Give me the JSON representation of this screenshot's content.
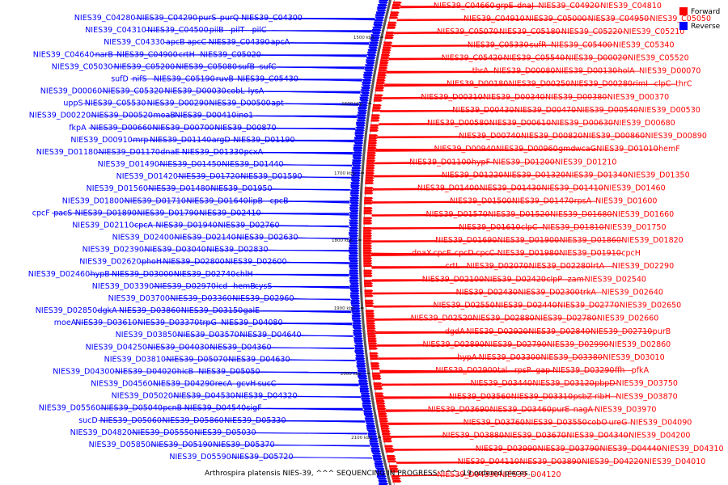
{
  "caption": "Arthrospira platensis NIES-39, ^^^ SEQUENCING IN PROGRESS ^^^, 19 ordered pieces...",
  "legend": [
    {
      "label": "Forward",
      "color": "#ff0000"
    },
    {
      "label": "Reverse",
      "color": "#0000ff"
    }
  ],
  "colors": {
    "forward": "#ff0000",
    "reverse": "#0000ff",
    "backbone": "#555555"
  },
  "ruler": [
    "1500 kbp",
    "1600 kbp",
    "1700 kbp",
    "1800 kbp",
    "1900 kbp",
    "2000 kbp",
    "2100 kbp"
  ],
  "reverse_labels": [
    "NIES39_C04280",
    "NIES39_C04290",
    "purS",
    "purQ",
    "NIES39_C04300",
    "NIES39_C04310",
    "NIES39_C04500",
    "pilB",
    "pilT",
    "pilC",
    "NIES39_C04330",
    "apcB",
    "apcC",
    "NIES39_C04390",
    "apcA",
    "NIES39_C04640",
    "narB",
    "NIES39_C04900",
    "crtH",
    "NIES39_C05020",
    "NIES39_C05030",
    "NIES39_C05200",
    "NIES39_C05080",
    "sufB",
    "sufC",
    "sufD",
    "nifS",
    "NIES39_C05190",
    "ruvB",
    "NIES39_C05430",
    "NIES39_D00060",
    "NIES39_C05320",
    "NIES39_D00030",
    "cobL",
    "lysA",
    "uppS",
    "NIES39_C05530",
    "NIES39_D00290",
    "NIES39_D00500",
    "apt",
    "NIES39_D00220",
    "NIES39_D00520",
    "moaB",
    "NIES39_D00410",
    "ino1",
    "fkpA",
    "NIES39_D00660",
    "NIES39_D00700",
    "NIES39_D00870",
    "NIES39_D00910",
    "mrp",
    "NIES39_D01140",
    "argD",
    "NIES39_D01190",
    "NIES39_D01180",
    "NIES39_D01170",
    "dnaE",
    "NIES39_D01330",
    "pcxA",
    "NIES39_D01490",
    "NIES39_D01450",
    "NIES39_D01440",
    "NIES39_D01420",
    "NIES39_D01720",
    "NIES39_D01590",
    "NIES39_D01560",
    "NIES39_D01480",
    "NIES39_D01950",
    "NIES39_D01800",
    "NIES39_D01710",
    "NIES39_D01640",
    "lipB",
    "cpcB",
    "cpcF",
    "pacS",
    "NIES39_D01890",
    "NIES39_D01790",
    "NIES39_D02410",
    "NIES39_D02110",
    "cpcA",
    "NIES39_D01940",
    "NIES39_D02760",
    "NIES39_D02400",
    "NIES39_D02140",
    "NIES39_D02630",
    "NIES39_D02390",
    "NIES39_D03040",
    "NIES39_D02830",
    "NIES39_D02620",
    "phoH",
    "NIES39_D02800",
    "NIES39_D02600",
    "NIES39_D02460",
    "hypB",
    "NIES39_D03000",
    "NIES39_D02740",
    "chlH",
    "NIES39_D03390",
    "NIES39_D02970",
    "icd",
    "hemB",
    "cysS",
    "NIES39_D03700",
    "NIES39_D03360",
    "NIES39_D02960",
    "NIES39_D02850",
    "dgkA",
    "NIES39_D03860",
    "NIES39_D03150",
    "galE",
    "moeA",
    "NIES39_D03610",
    "NIES39_D03370",
    "trpG",
    "NIES39_D04080",
    "NIES39_D03850",
    "NIES39_D03570",
    "NIES39_D04640",
    "NIES39_D04250",
    "NIES39_D04030",
    "NIES39_D04360",
    "NIES39_D03810",
    "NIES39_D05070",
    "NIES39_D04630",
    "NIES39_D04300",
    "NIES39_D04020",
    "hicB",
    "NIES39_D05050",
    "NIES39_D04560",
    "NIES39_D04290",
    "recA",
    "gcvH",
    "sucC",
    "NIES39_D05020",
    "NIES39_D04530",
    "NIES39_D04320",
    "NIES39_D05560",
    "NIES39_D05040",
    "pcnB",
    "NIES39_D04540",
    "sigF",
    "sucD",
    "NIES39_D05060",
    "NIES39_D05860",
    "NIES39_D05330",
    "NIES39_D04820",
    "NIES39_D05550",
    "NIES39_D05030",
    "NIES39_D05850",
    "NIES39_D05190",
    "NIES39_D05370",
    "NIES39_D05590",
    "NIES39_D05720"
  ],
  "forward_labels": [
    "NIES39_C04660",
    "grpE",
    "dnaJ",
    "NIES39_C04920",
    "NIES39_C04810",
    "NIES39_C04910",
    "NIES39_C05000",
    "NIES39_C04950",
    "NIES39_C05050",
    "NIES39_C05070",
    "NIES39_C05180",
    "NIES39_C05220",
    "NIES39_C05210",
    "NIES39_C05330",
    "sufR",
    "NIES39_C05400",
    "NIES39_C05340",
    "NIES39_C05420",
    "NIES39_C05540",
    "NIES39_D00020",
    "NIES39_C05520",
    "thrA",
    "NIES39_D00080",
    "NIES39_D00130",
    "holA",
    "NIES39_D00070",
    "NIES39_D00180",
    "NIES39_D00250",
    "NIES39_D00280",
    "rimI",
    "clpC",
    "thrC",
    "NIES39_D00310",
    "NIES39_D00340",
    "NIES39_D00380",
    "NIES39_D00370",
    "NIES39_D00430",
    "NIES39_D00470",
    "NIES39_D00540",
    "NIES39_D00530",
    "NIES39_D00580",
    "NIES39_D00610",
    "NIES39_D00630",
    "NIES39_D00680",
    "NIES39_D00740",
    "NIES39_D00820",
    "NIES39_D00860",
    "NIES39_D00890",
    "NIES39_D00940",
    "NIES39_D00960",
    "gmd",
    "wcaG",
    "NIES39_D01010",
    "hemF",
    "NIES39_D01100",
    "hypF",
    "NIES39_D01200",
    "NIES39_D01210",
    "NIES39_D01220",
    "NIES39_D01320",
    "NIES39_D01340",
    "NIES39_D01350",
    "NIES39_D01400",
    "NIES39_D01430",
    "NIES39_D01410",
    "NIES39_D01460",
    "NIES39_D01500",
    "NIES39_D01470",
    "rpsA",
    "NIES39_D01600",
    "NIES39_D01570",
    "NIES39_D01520",
    "NIES39_D01680",
    "NIES39_D01660",
    "NIES39_D01610",
    "clpC",
    "NIES39_D01810",
    "NIES39_D01750",
    "NIES39_D01690",
    "NIES39_D01900",
    "NIES39_D01860",
    "NIES39_D01820",
    "dnaX",
    "cpcE",
    "cpcD",
    "cpcC",
    "NIES39_D01980",
    "NIES39_D01910",
    "cpcH",
    "crtL",
    "NIES39_D02070",
    "NIES39_D02280",
    "lrtA",
    "NIES39_D02290",
    "NIES39_D02100",
    "NIES39_D02420",
    "clpP",
    "zam",
    "NIES39_D02540",
    "NIES39_D02430",
    "NIES39_D02300",
    "trkA",
    "NIES39_D02640",
    "NIES39_D02550",
    "NIES39_D02440",
    "NIES39_D02770",
    "NIES39_D02650",
    "NIES39_D02520",
    "NIES39_D02880",
    "NIES39_D02780",
    "NIES39_D02660",
    "dgdA",
    "NIES39_D02920",
    "NIES39_D02840",
    "NIES39_D02710",
    "purB",
    "NIES39_D02890",
    "NIES39_D02790",
    "NIES39_D02990",
    "NIES39_D02860",
    "hypA",
    "NIES39_D03300",
    "NIES39_D03380",
    "NIES39_D03010",
    "NIES39_D02900",
    "tal",
    "rpsP",
    "gap",
    "NIES39_D03290",
    "ffh",
    "pfkA",
    "NIES39_D03440",
    "NIES39_D03120",
    "pbpD",
    "NIES39_D03750",
    "NIES39_D03560",
    "NIES39_D03310",
    "psbZ",
    "ribH",
    "NIES39_D03870",
    "NIES39_D03690",
    "NIES39_D03460",
    "purE",
    "nagA",
    "NIES39_D03970",
    "NIES39_D03760",
    "NIES39_D03550",
    "cobO",
    "ureG",
    "NIES39_D04090",
    "NIES39_D03880",
    "NIES39_D03670",
    "NIES39_D04340",
    "NIES39_D04200",
    "NIES39_D03990",
    "NIES39_D03790",
    "NIES39_D04440",
    "NIES39_D04310",
    "NIES39_D04110",
    "NIES39_D03890",
    "NIES39_D04220",
    "NIES39_D04010",
    "NIES39_D04330",
    "NIES39_D04120"
  ]
}
